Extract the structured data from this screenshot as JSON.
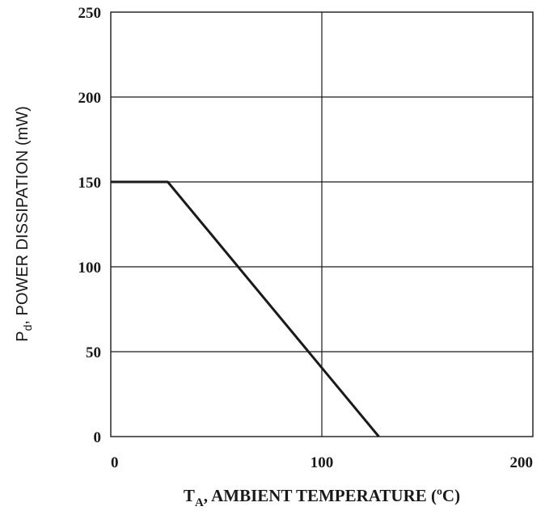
{
  "chart_data": {
    "type": "line",
    "x_axis": {
      "label_main": "T",
      "label_sub": "A",
      "label_rest": ", AMBIENT TEMPERATURE (ºC)",
      "range": [
        0,
        200
      ],
      "ticks": [
        0,
        100,
        200
      ],
      "tick_labels": [
        "0",
        "100",
        "200"
      ]
    },
    "y_axis": {
      "label_main": "P",
      "label_sub": "d",
      "label_rest": ", POWER DISSIPATION (mW)",
      "range": [
        0,
        250
      ],
      "ticks": [
        0,
        50,
        100,
        150,
        200,
        250
      ],
      "tick_labels": [
        "0",
        "50",
        "100",
        "150",
        "200",
        "250"
      ]
    },
    "grid": true,
    "series": [
      {
        "points": [
          {
            "x": 0,
            "y": 150
          },
          {
            "x": 27,
            "y": 150
          },
          {
            "x": 127,
            "y": 0
          }
        ]
      }
    ]
  }
}
